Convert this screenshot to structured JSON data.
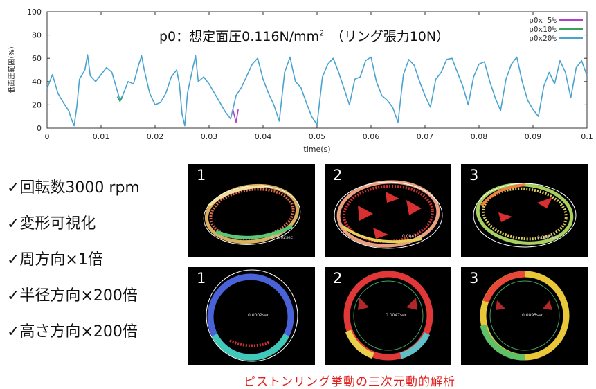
{
  "chart_data": {
    "type": "line",
    "title": "p0：想定面圧0.116N/mm",
    "title_sup": "2",
    "title_suffix": "　（リング張力10N）",
    "xlabel": "time(s)",
    "ylabel": "低面圧範囲(%)",
    "xlim": [
      0,
      0.1
    ],
    "ylim": [
      0,
      100
    ],
    "x_ticks": [
      "0",
      "0.01",
      "0.02",
      "0.03",
      "0.04",
      "0.05",
      "0.06",
      "0.07",
      "0.08",
      "0.09",
      "0.1"
    ],
    "y_ticks": [
      "0",
      "20",
      "40",
      "60",
      "80",
      "100"
    ],
    "grid": false,
    "legend": "top-right",
    "series": [
      {
        "name": "p0x 5%",
        "color": "#b040c8",
        "x": [
          0.0344,
          0.035,
          0.0354
        ],
        "y": [
          16,
          5,
          16
        ]
      },
      {
        "name": "p0x10%",
        "color": "#3aa060",
        "x": [
          0.013,
          0.0135,
          0.014
        ],
        "y": [
          27,
          23,
          27
        ]
      },
      {
        "name": "p0x20%",
        "color": "#49a3d0",
        "x": [
          0,
          0.001,
          0.0015,
          0.002,
          0.003,
          0.004,
          0.0045,
          0.005,
          0.0055,
          0.006,
          0.007,
          0.0075,
          0.008,
          0.009,
          0.01,
          0.011,
          0.012,
          0.013,
          0.0135,
          0.014,
          0.015,
          0.016,
          0.017,
          0.0175,
          0.018,
          0.019,
          0.02,
          0.021,
          0.022,
          0.023,
          0.024,
          0.0245,
          0.025,
          0.0255,
          0.026,
          0.027,
          0.0275,
          0.028,
          0.029,
          0.03,
          0.031,
          0.032,
          0.033,
          0.034,
          0.035,
          0.036,
          0.037,
          0.038,
          0.039,
          0.04,
          0.041,
          0.042,
          0.043,
          0.044,
          0.045,
          0.0455,
          0.046,
          0.047,
          0.048,
          0.049,
          0.05,
          0.051,
          0.052,
          0.053,
          0.054,
          0.055,
          0.056,
          0.057,
          0.058,
          0.059,
          0.06,
          0.061,
          0.062,
          0.063,
          0.064,
          0.065,
          0.066,
          0.067,
          0.068,
          0.069,
          0.07,
          0.071,
          0.072,
          0.073,
          0.074,
          0.075,
          0.076,
          0.077,
          0.078,
          0.079,
          0.08,
          0.081,
          0.082,
          0.083,
          0.084,
          0.085,
          0.086,
          0.087,
          0.088,
          0.089,
          0.09,
          0.091,
          0.092,
          0.093,
          0.094,
          0.095,
          0.096,
          0.097,
          0.098,
          0.099,
          0.1
        ],
        "y": [
          34,
          46,
          38,
          30,
          22,
          15,
          8,
          2,
          18,
          42,
          50,
          63,
          45,
          40,
          46,
          52,
          48,
          32,
          24,
          28,
          40,
          38,
          55,
          62,
          50,
          30,
          20,
          22,
          30,
          44,
          50,
          38,
          12,
          2,
          30,
          52,
          62,
          40,
          44,
          38,
          30,
          22,
          14,
          8,
          28,
          35,
          45,
          55,
          60,
          42,
          30,
          20,
          6,
          48,
          61,
          50,
          40,
          35,
          22,
          10,
          3,
          44,
          55,
          60,
          48,
          34,
          20,
          42,
          44,
          58,
          61,
          40,
          28,
          24,
          18,
          5,
          46,
          59,
          54,
          40,
          28,
          18,
          42,
          48,
          59,
          60,
          48,
          36,
          20,
          44,
          55,
          57,
          40,
          26,
          15,
          42,
          55,
          61,
          40,
          24,
          16,
          10,
          36,
          48,
          38,
          58,
          48,
          26,
          52,
          58,
          45
        ]
      }
    ]
  },
  "checklist": [
    "✓回転数3000 rpm",
    "✓変形可視化",
    "✓周方向×1倍",
    "✓半径方向×200倍",
    "✓高さ方向×200倍"
  ],
  "panels": [
    {
      "number": "1",
      "stamp": "0.0002sec"
    },
    {
      "number": "2",
      "stamp": "0.0047sec"
    },
    {
      "number": "3",
      "stamp": "0.0095sec"
    },
    {
      "number": "1",
      "stamp": "0.0002sec"
    },
    {
      "number": "2",
      "stamp": "0.0047sec"
    },
    {
      "number": "3",
      "stamp": "0.0095sec"
    }
  ],
  "caption": "ピストンリング挙動の三次元動的解析",
  "colors": {
    "caption": "#e0201c",
    "panel_bg": "#000000",
    "axis": "#333333"
  }
}
